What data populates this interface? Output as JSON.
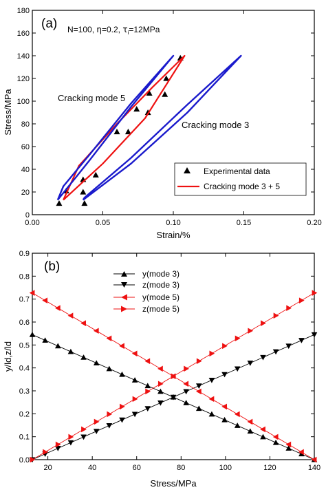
{
  "chart_data": [
    {
      "panel": "(a)",
      "type": "line",
      "params": {
        "prefix": "N=100, ",
        "eta": "η",
        "eta_val": "=0.2, ",
        "tau": "τ",
        "tau_sub": "i",
        "tau_val": "=12MPa"
      },
      "xlabel": "Strain/%",
      "ylabel": "Stress/MPa",
      "xlim": [
        0.0,
        0.2
      ],
      "ylim": [
        0,
        180
      ],
      "xticks": [
        "0.00",
        "0.05",
        "0.10",
        "0.15",
        "0.20"
      ],
      "yticks": [
        "0",
        "20",
        "40",
        "60",
        "80",
        "100",
        "120",
        "140",
        "160",
        "180"
      ],
      "annotations": [
        {
          "text": "Cracking mode 5",
          "x": 0.018,
          "y": 101
        },
        {
          "text": "Cracking mode 3",
          "x": 0.103,
          "y": 77
        }
      ],
      "legend": {
        "position": "bottom-right",
        "entries": [
          "Experimental data",
          "Cracking mode 3 + 5"
        ]
      },
      "series": [
        {
          "name": "Experimental data",
          "style": "triangle",
          "color": "#000000",
          "x": [
            0.019,
            0.024,
            0.036,
            0.037,
            0.036,
            0.045,
            0.06,
            0.068,
            0.074,
            0.082,
            0.083,
            0.094,
            0.095,
            0.105
          ],
          "y": [
            10,
            21,
            31,
            10,
            20,
            35,
            73,
            73,
            93,
            90,
            107,
            106,
            120,
            138
          ]
        },
        {
          "name": "Cracking mode 3 + 5",
          "style": "line",
          "color": "#ee1111",
          "x": [
            0.022,
            0.05,
            0.08,
            0.108,
            0.085,
            0.06,
            0.033,
            0.022
          ],
          "y": [
            13,
            45,
            85,
            140,
            112,
            80,
            43,
            13
          ]
        },
        {
          "style": "line",
          "color": "#1a1acc",
          "x": [
            0.018,
            0.04,
            0.07,
            0.1,
            0.07,
            0.04,
            0.022,
            0.018
          ],
          "y": [
            13,
            47,
            95,
            140,
            98,
            52,
            25,
            13
          ]
        },
        {
          "style": "line",
          "color": "#1a1acc",
          "x": [
            0.036,
            0.07,
            0.11,
            0.148,
            0.11,
            0.07,
            0.037,
            0.036
          ],
          "y": [
            13,
            45,
            90,
            140,
            97,
            50,
            15,
            13
          ]
        }
      ]
    },
    {
      "panel": "(b)",
      "type": "line",
      "xlabel": "Stress/MPa",
      "ylabel": "y/ld,z/ld",
      "xlim": [
        13,
        140
      ],
      "ylim": [
        0,
        0.9
      ],
      "xticks": [
        "20",
        "40",
        "60",
        "80",
        "100",
        "120",
        "140"
      ],
      "yticks": [
        "0.0",
        "0.1",
        "0.2",
        "0.3",
        "0.4",
        "0.5",
        "0.6",
        "0.7",
        "0.8",
        "0.9"
      ],
      "legend": {
        "position": "top-center",
        "entries": [
          "y(mode 3)",
          "z(mode 3)",
          "y(mode 5)",
          "z(mode 5)"
        ]
      },
      "series": [
        {
          "name": "y(mode 3)",
          "color": "#000000",
          "marker": "up",
          "x_start": 13,
          "x_end": 140,
          "y_start": 0.545,
          "y_end": 0.0
        },
        {
          "name": "z(mode 3)",
          "color": "#000000",
          "marker": "down",
          "x_start": 13,
          "x_end": 140,
          "y_start": 0.0,
          "y_end": 0.545
        },
        {
          "name": "y(mode 5)",
          "color": "#ee1111",
          "marker": "left",
          "x_start": 13,
          "x_end": 140,
          "y_start": 0.727,
          "y_end": 0.0
        },
        {
          "name": "z(mode 5)",
          "color": "#ee1111",
          "marker": "right",
          "x_start": 13,
          "x_end": 140,
          "y_start": 0.0,
          "y_end": 0.727
        }
      ],
      "marker_count": 23
    }
  ]
}
